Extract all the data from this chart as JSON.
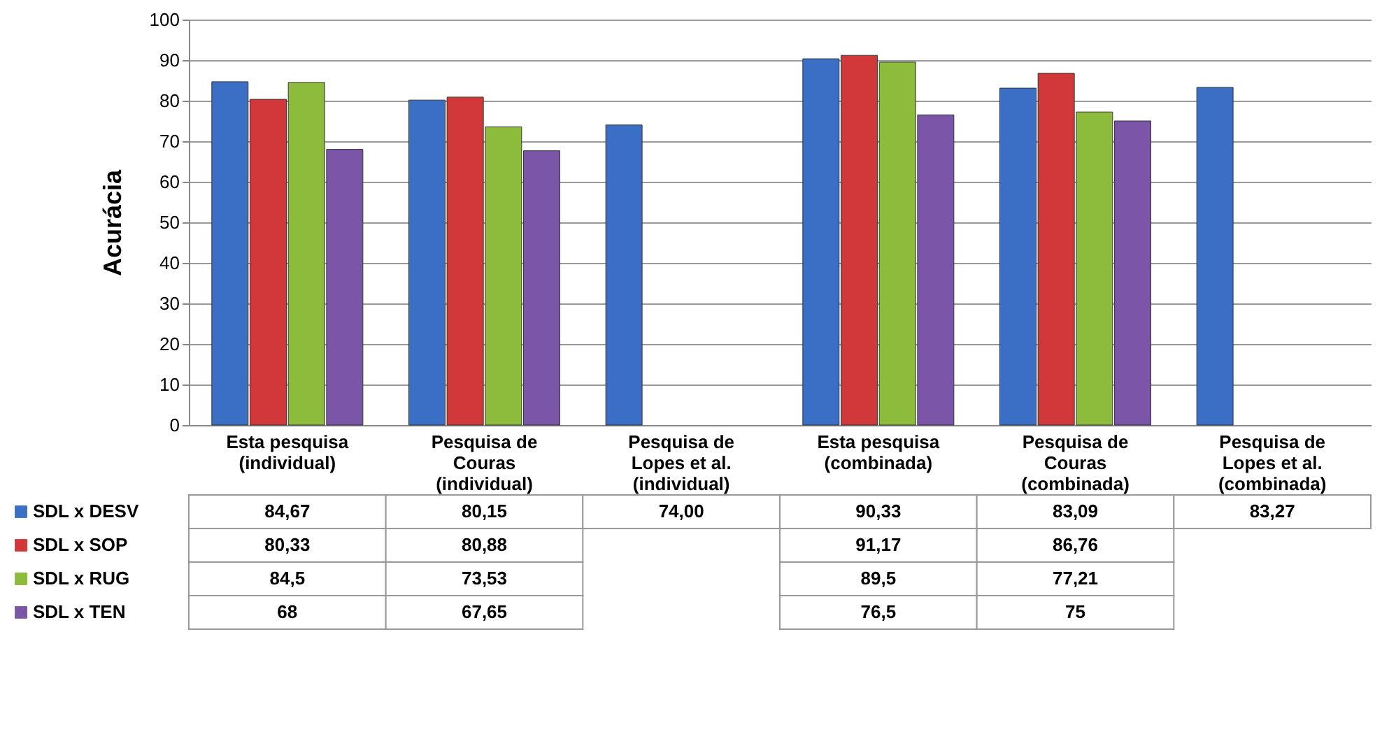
{
  "chart_data": {
    "type": "bar",
    "ylabel": "Acurácia",
    "categories": [
      "Esta pesquisa\n(individual)",
      "Pesquisa de\nCouras\n(individual)",
      "Pesquisa de\nLopes et al.\n(individual)",
      "Esta pesquisa\n(combinada)",
      "Pesquisa de\nCouras\n(combinada)",
      "Pesquisa de\nLopes et al.\n(combinada)"
    ],
    "series": [
      {
        "name": "SDL x DESV",
        "color": "#3b6fc6",
        "values": [
          84.67,
          80.15,
          74.0,
          90.33,
          83.09,
          83.27
        ],
        "value_labels": [
          "84,67",
          "80,15",
          "74,00",
          "90,33",
          "83,09",
          "83,27"
        ]
      },
      {
        "name": "SDL x SOP",
        "color": "#d0383a",
        "values": [
          80.33,
          80.88,
          null,
          91.17,
          86.76,
          null
        ],
        "value_labels": [
          "80,33",
          "80,88",
          null,
          "91,17",
          "86,76",
          null
        ]
      },
      {
        "name": "SDL x RUG",
        "color": "#8dbb3c",
        "values": [
          84.5,
          73.53,
          null,
          89.5,
          77.21,
          null
        ],
        "value_labels": [
          "84,5",
          "73,53",
          null,
          "89,5",
          "77,21",
          null
        ]
      },
      {
        "name": "SDL x TEN",
        "color": "#7b55a8",
        "values": [
          68,
          67.65,
          null,
          76.5,
          75,
          null
        ],
        "value_labels": [
          "68",
          "67,65",
          null,
          "76,5",
          "75",
          null
        ]
      }
    ],
    "ylim": [
      0,
      100
    ],
    "yticks": [
      0,
      10,
      20,
      30,
      40,
      50,
      60,
      70,
      80,
      90,
      100
    ],
    "grid": "y",
    "legend": "bottom left"
  }
}
